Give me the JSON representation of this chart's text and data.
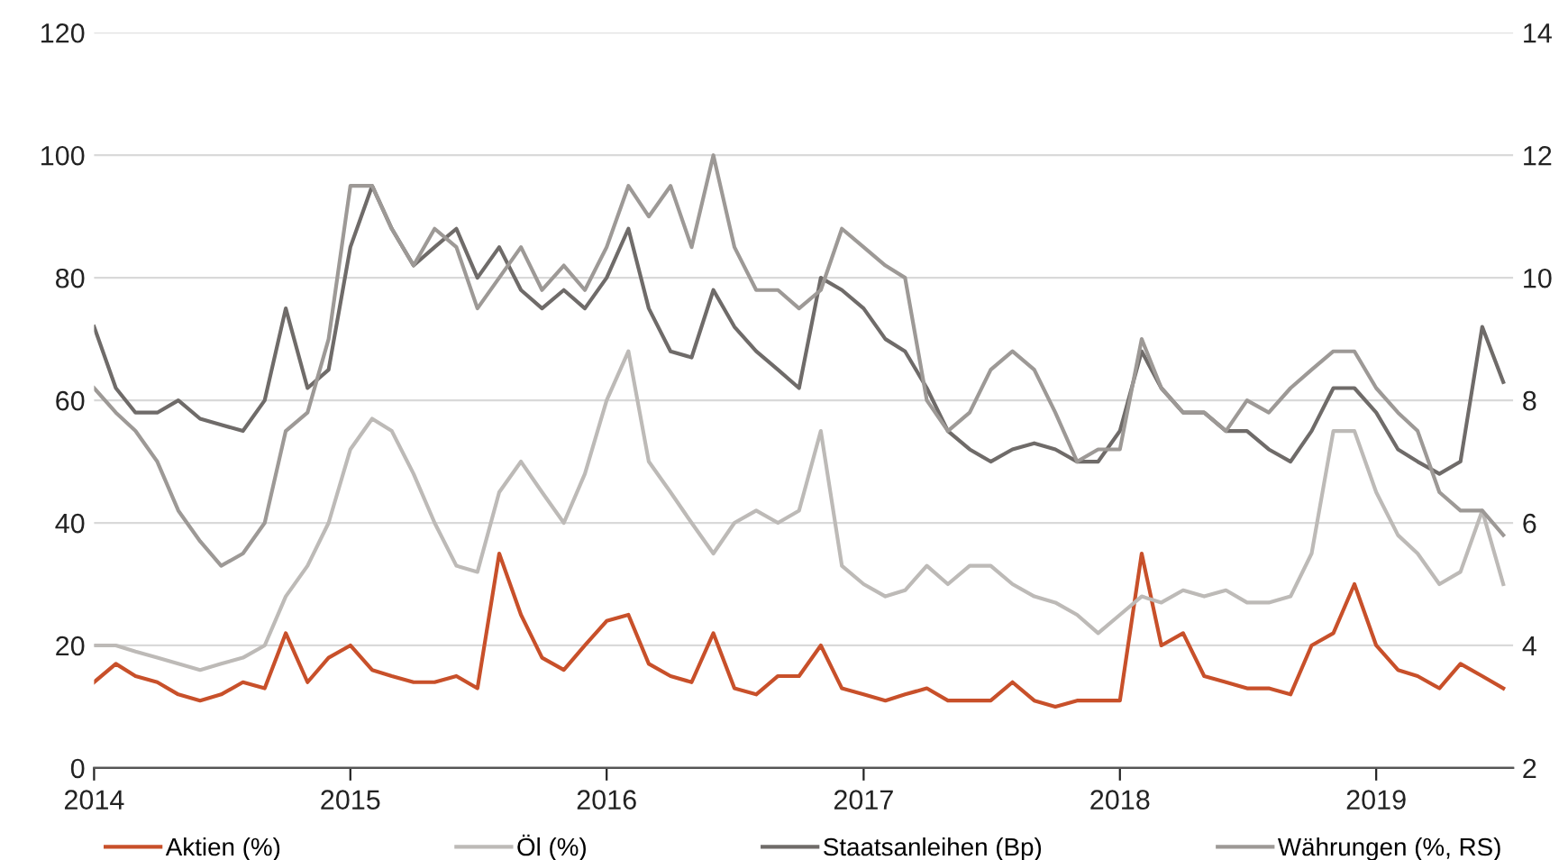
{
  "chart_data": {
    "type": "line",
    "x": [
      "2014-01",
      "2014-02",
      "2014-03",
      "2014-04",
      "2014-05",
      "2014-06",
      "2014-07",
      "2014-08",
      "2014-09",
      "2014-10",
      "2014-11",
      "2014-12",
      "2015-01",
      "2015-02",
      "2015-03",
      "2015-04",
      "2015-05",
      "2015-06",
      "2015-07",
      "2015-08",
      "2015-09",
      "2015-10",
      "2015-11",
      "2015-12",
      "2016-01",
      "2016-02",
      "2016-03",
      "2016-04",
      "2016-05",
      "2016-06",
      "2016-07",
      "2016-08",
      "2016-09",
      "2016-10",
      "2016-11",
      "2016-12",
      "2017-01",
      "2017-02",
      "2017-03",
      "2017-04",
      "2017-05",
      "2017-06",
      "2017-07",
      "2017-08",
      "2017-09",
      "2017-10",
      "2017-11",
      "2017-12",
      "2018-01",
      "2018-02",
      "2018-03",
      "2018-04",
      "2018-05",
      "2018-06",
      "2018-07",
      "2018-08",
      "2018-09",
      "2018-10",
      "2018-11",
      "2018-12",
      "2019-01",
      "2019-02",
      "2019-03",
      "2019-04",
      "2019-05",
      "2019-06",
      "2019-07"
    ],
    "series": [
      {
        "name": "Aktien (%)",
        "color": "#c8502a",
        "values": [
          14,
          17,
          15,
          14,
          12,
          11,
          12,
          14,
          13,
          22,
          14,
          18,
          20,
          16,
          15,
          14,
          14,
          15,
          13,
          35,
          25,
          18,
          16,
          20,
          24,
          25,
          17,
          15,
          14,
          22,
          13,
          12,
          15,
          15,
          20,
          13,
          12,
          11,
          12,
          13,
          11,
          11,
          11,
          14,
          11,
          10,
          11,
          11,
          11,
          35,
          20,
          22,
          15,
          14,
          13,
          13,
          12,
          20,
          22,
          30,
          20,
          16,
          15,
          13,
          17,
          15,
          13
        ]
      },
      {
        "name": "Öl (%)",
        "color": "#bdbab7",
        "values": [
          20,
          20,
          19,
          18,
          17,
          16,
          17,
          18,
          20,
          28,
          33,
          40,
          52,
          57,
          55,
          48,
          40,
          33,
          32,
          45,
          50,
          45,
          40,
          48,
          60,
          68,
          50,
          45,
          40,
          35,
          40,
          42,
          40,
          42,
          55,
          33,
          30,
          28,
          29,
          33,
          30,
          33,
          33,
          30,
          28,
          27,
          25,
          22,
          25,
          28,
          27,
          29,
          28,
          29,
          27,
          27,
          28,
          35,
          55,
          55,
          45,
          38,
          35,
          30,
          32,
          42,
          30
        ]
      },
      {
        "name": "Staatsanleihen (Bp)",
        "color": "#6f6b69",
        "values": [
          72,
          62,
          58,
          58,
          60,
          57,
          56,
          55,
          60,
          75,
          62,
          65,
          85,
          95,
          88,
          82,
          85,
          88,
          80,
          85,
          78,
          75,
          78,
          75,
          80,
          88,
          75,
          68,
          67,
          78,
          72,
          68,
          65,
          62,
          80,
          78,
          75,
          70,
          68,
          62,
          55,
          52,
          50,
          52,
          53,
          52,
          50,
          50,
          55,
          68,
          62,
          58,
          58,
          55,
          55,
          52,
          50,
          55,
          62,
          62,
          58,
          52,
          50,
          48,
          50,
          72,
          63
        ]
      },
      {
        "name": "Währungen (%, RS)",
        "color": "#9d9996",
        "axis": "y2",
        "values": [
          8.2,
          7.8,
          7.5,
          7.0,
          6.2,
          5.7,
          5.3,
          5.5,
          6.0,
          7.5,
          7.8,
          9.0,
          11.5,
          11.5,
          10.8,
          10.2,
          10.8,
          10.5,
          9.5,
          10.0,
          10.5,
          9.8,
          10.2,
          9.8,
          10.5,
          11.5,
          11.0,
          11.5,
          10.5,
          12.0,
          10.5,
          9.8,
          9.8,
          9.5,
          9.8,
          10.8,
          10.5,
          10.2,
          10.0,
          8.0,
          7.5,
          7.8,
          8.5,
          8.8,
          8.5,
          7.8,
          7.0,
          7.2,
          7.2,
          9.0,
          8.2,
          7.8,
          7.8,
          7.5,
          8.0,
          7.8,
          8.2,
          8.5,
          8.8,
          8.8,
          8.2,
          7.8,
          7.5,
          6.5,
          6.2,
          6.2,
          5.8
        ]
      }
    ],
    "xlim": [
      "2014-01-01",
      "2019-07-15"
    ],
    "xticks": [
      {
        "value": "2014",
        "label": "2014"
      },
      {
        "value": "2015",
        "label": "2015"
      },
      {
        "value": "2016",
        "label": "2016"
      },
      {
        "value": "2017",
        "label": "2017"
      },
      {
        "value": "2018",
        "label": "2018"
      },
      {
        "value": "2019",
        "label": "2019"
      }
    ],
    "ylim": [
      0,
      120
    ],
    "yticks": [
      0,
      20,
      40,
      60,
      80,
      100,
      120
    ],
    "y2lim": [
      2,
      14
    ],
    "y2ticks": [
      2,
      4,
      6,
      8,
      10,
      12,
      14
    ],
    "grid": "y",
    "legend": "bottom",
    "line_style": "solid",
    "marker": "none"
  }
}
